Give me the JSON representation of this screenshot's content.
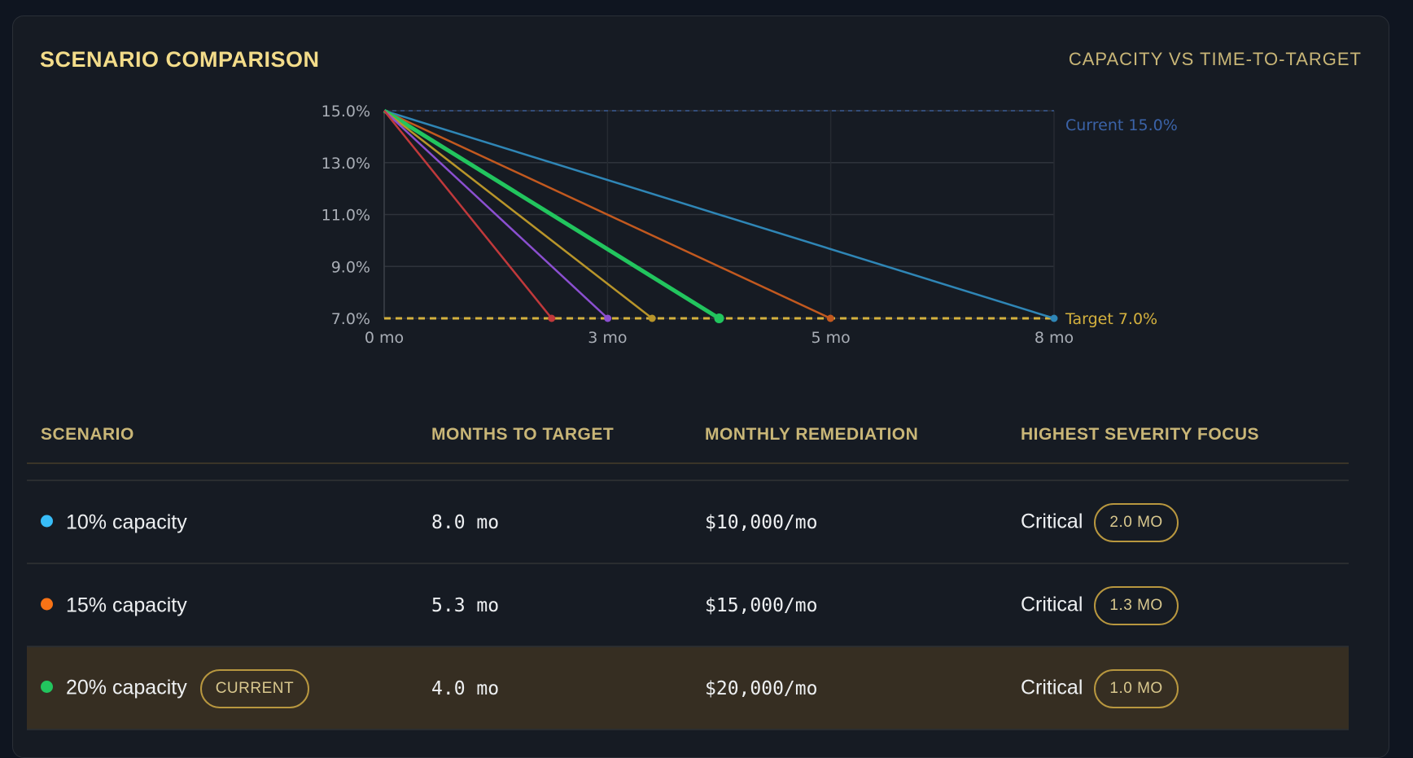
{
  "header": {
    "title": "SCENARIO COMPARISON",
    "subtitle": "CAPACITY VS TIME-TO-TARGET"
  },
  "chart_data": {
    "type": "line",
    "xlim": [
      0,
      8
    ],
    "ylim": [
      7,
      15
    ],
    "x_ticks": [
      {
        "value": 0,
        "label": "0 mo"
      },
      {
        "value": 2.667,
        "label": "3 mo"
      },
      {
        "value": 5.333,
        "label": "5 mo"
      },
      {
        "value": 8,
        "label": "8 mo"
      }
    ],
    "y_ticks": [
      {
        "value": 15,
        "label": "15.0%"
      },
      {
        "value": 13,
        "label": "13.0%"
      },
      {
        "value": 11,
        "label": "11.0%"
      },
      {
        "value": 9,
        "label": "9.0%"
      },
      {
        "value": 7,
        "label": "7.0%"
      }
    ],
    "grid": true,
    "reference_lines": [
      {
        "y": 15,
        "label": "Current 15.0%",
        "color": "#3b63a8"
      },
      {
        "y": 7,
        "label": "Target 7.0%",
        "color": "#d4b13e"
      }
    ],
    "series": [
      {
        "color": "#2f86b6",
        "points": [
          [
            0,
            15
          ],
          [
            8.0,
            7
          ]
        ]
      },
      {
        "color": "#c2591f",
        "points": [
          [
            0,
            15
          ],
          [
            5.33,
            7
          ]
        ]
      },
      {
        "color": "#22c55e",
        "highlight": true,
        "points": [
          [
            0,
            15
          ],
          [
            4.0,
            7
          ]
        ]
      },
      {
        "color": "#b8952a",
        "points": [
          [
            0,
            15
          ],
          [
            3.2,
            7
          ]
        ]
      },
      {
        "color": "#8b4fd0",
        "points": [
          [
            0,
            15
          ],
          [
            2.67,
            7
          ]
        ]
      },
      {
        "color": "#c0393b",
        "points": [
          [
            0,
            15
          ],
          [
            2.0,
            7
          ]
        ]
      }
    ]
  },
  "table": {
    "columns": [
      "SCENARIO",
      "MONTHS TO TARGET",
      "MONTHLY REMEDIATION",
      "HIGHEST SEVERITY FOCUS"
    ],
    "rows": [
      {
        "dot": "#38bdf8",
        "scenario": "10% capacity",
        "months": "8.0 mo",
        "cost": "$10,000/mo",
        "severity": "Critical",
        "sev_months": "2.0 MO"
      },
      {
        "dot": "#f97316",
        "scenario": "15% capacity",
        "months": "5.3 mo",
        "cost": "$15,000/mo",
        "severity": "Critical",
        "sev_months": "1.3 MO"
      },
      {
        "dot": "#22c55e",
        "scenario": "20% capacity",
        "badge": "CURRENT",
        "months": "4.0 mo",
        "cost": "$20,000/mo",
        "severity": "Critical",
        "sev_months": "1.0 MO",
        "highlight": true
      }
    ]
  }
}
